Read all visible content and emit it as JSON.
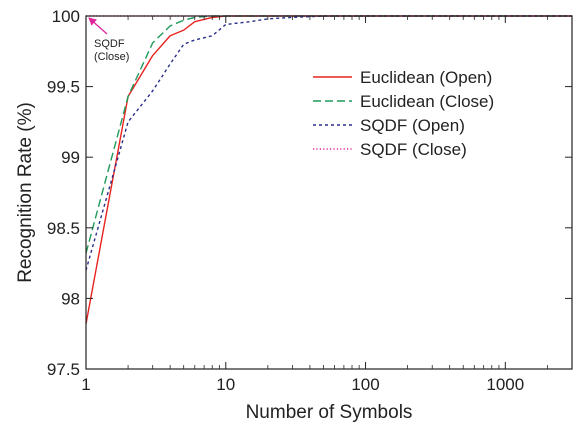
{
  "chart_data": {
    "type": "line",
    "title": "",
    "xlabel": "Number of Symbols",
    "ylabel": "Recognition Rate (%)",
    "xscale": "log",
    "xlim": [
      1,
      3000
    ],
    "ylim": [
      97.5,
      100
    ],
    "x_ticks": [
      1,
      10,
      100,
      1000
    ],
    "x_tick_labels": [
      "1",
      "10",
      "100",
      "1000"
    ],
    "y_ticks": [
      97.5,
      98,
      98.5,
      99,
      99.5,
      100
    ],
    "y_tick_labels": [
      "97.5",
      "98",
      "98.5",
      "99",
      "99.5",
      "100"
    ],
    "grid": false,
    "legend_position": "right",
    "series": [
      {
        "name": "Euclidean (Open)",
        "color": "#e8231f",
        "dash": "solid",
        "x": [
          1,
          2,
          3,
          4,
          5,
          6,
          8,
          10,
          20,
          100,
          1000,
          3000
        ],
        "y": [
          97.82,
          99.43,
          99.72,
          99.86,
          99.9,
          99.96,
          99.99,
          100,
          100,
          100,
          100,
          100
        ]
      },
      {
        "name": "Euclidean (Close)",
        "color": "#1e9a5a",
        "dash": "dashed",
        "x": [
          1,
          2,
          3,
          4,
          5,
          6,
          8,
          10,
          20,
          100,
          1000,
          3000
        ],
        "y": [
          98.32,
          99.43,
          99.81,
          99.93,
          99.97,
          99.99,
          100,
          100,
          100,
          100,
          100,
          100
        ]
      },
      {
        "name": "SQDF (Open)",
        "color": "#2a2f8a",
        "dash": "short-dashed",
        "x": [
          1,
          2,
          3,
          4,
          5,
          6,
          8,
          10,
          15,
          20,
          30,
          50,
          100,
          1000,
          3000
        ],
        "y": [
          98.2,
          99.25,
          99.47,
          99.66,
          99.8,
          99.83,
          99.86,
          99.94,
          99.96,
          99.98,
          99.99,
          100,
          100,
          100,
          100
        ]
      },
      {
        "name": "SQDF (Close)",
        "color": "#e0249a",
        "dash": "dotted",
        "x": [
          1,
          3000
        ],
        "y": [
          100,
          100
        ]
      }
    ],
    "annotations": [
      {
        "text_lines": [
          "SQDF",
          "(Close)"
        ],
        "points_to": {
          "x": 1,
          "y": 100
        },
        "color": "#e0249a"
      }
    ]
  }
}
